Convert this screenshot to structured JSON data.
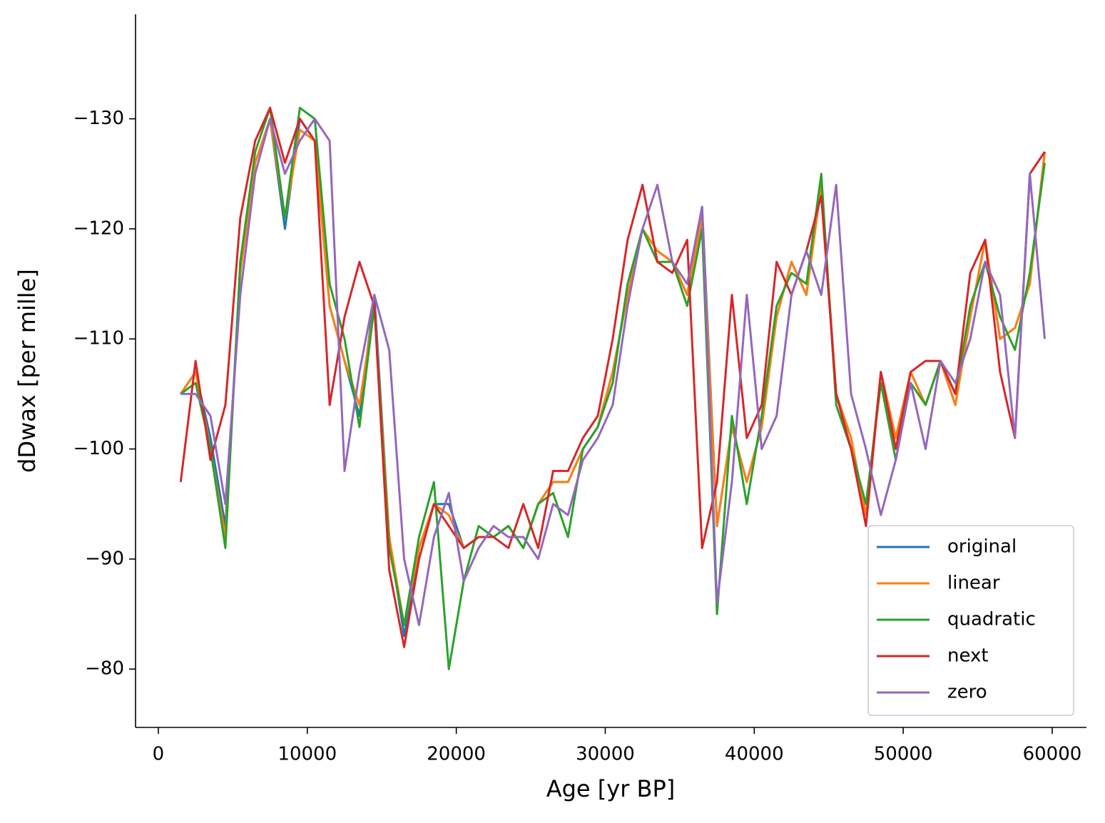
{
  "chart_data": {
    "type": "line",
    "xlabel": "Age [yr BP]",
    "ylabel": "dDwax [per mille]",
    "x": [
      1500,
      2500,
      3500,
      4500,
      5500,
      6500,
      7500,
      8500,
      9500,
      10500,
      11500,
      12500,
      13500,
      14500,
      15500,
      16500,
      17500,
      18500,
      19500,
      20500,
      21500,
      22500,
      23500,
      24500,
      25500,
      26500,
      27500,
      28500,
      29500,
      30500,
      31500,
      32500,
      33500,
      34500,
      35500,
      36500,
      37500,
      38500,
      39500,
      40500,
      41500,
      42500,
      43500,
      44500,
      45500,
      46500,
      47500,
      48500,
      49500,
      50500,
      51500,
      52500,
      53500,
      54500,
      55500,
      56500,
      57500,
      58500,
      59500
    ],
    "series": [
      {
        "name": "original",
        "color": "#1f77b4",
        "values": [
          -105,
          -107,
          -101,
          -93,
          -116,
          -126,
          -130,
          -120,
          -130,
          -128,
          -113,
          -108,
          -103,
          -114,
          -92,
          -83,
          -91,
          -95,
          -95,
          -91,
          -92,
          -92,
          -93,
          -91,
          -95,
          -97,
          -97,
          -100,
          -102,
          -107,
          -114,
          -120,
          -118,
          -117,
          -114,
          -122,
          -93,
          -102,
          -97,
          -102,
          -112,
          -117,
          -114,
          -124,
          -105,
          -101,
          -94,
          -107,
          -101,
          -107,
          -104,
          -108,
          -104,
          -112,
          -119,
          -110,
          -111,
          -115,
          -127
        ]
      },
      {
        "name": "linear",
        "color": "#ff7f0e",
        "values": [
          -105,
          -107,
          -100,
          -92,
          -116,
          -126,
          -130,
          -121,
          -129,
          -128,
          -113,
          -108,
          -104,
          -113,
          -92,
          -84,
          -91,
          -95,
          -94,
          -91,
          -92,
          -92,
          -93,
          -91,
          -95,
          -97,
          -97,
          -100,
          -102,
          -107,
          -114,
          -120,
          -118,
          -117,
          -114,
          -121,
          -93,
          -102,
          -97,
          -102,
          -112,
          -117,
          -114,
          -124,
          -105,
          -101,
          -94,
          -107,
          -101,
          -107,
          -104,
          -108,
          -104,
          -112,
          -119,
          -110,
          -111,
          -115,
          -127
        ]
      },
      {
        "name": "quadratic",
        "color": "#2ca02c",
        "values": [
          -105,
          -106,
          -100,
          -91,
          -117,
          -127,
          -131,
          -121,
          -131,
          -130,
          -115,
          -110,
          -102,
          -113,
          -91,
          -84,
          -92,
          -97,
          -80,
          -88,
          -93,
          -92,
          -93,
          -91,
          -95,
          -96,
          -92,
          -100,
          -102,
          -106,
          -115,
          -120,
          -117,
          -117,
          -113,
          -120,
          -85,
          -103,
          -95,
          -103,
          -113,
          -116,
          -115,
          -125,
          -104,
          -100,
          -95,
          -106,
          -99,
          -106,
          -104,
          -108,
          -105,
          -113,
          -117,
          -112,
          -109,
          -116,
          -126
        ]
      },
      {
        "name": "next",
        "color": "#d62728",
        "values": [
          -97,
          -108,
          -99,
          -104,
          -121,
          -128,
          -131,
          -126,
          -130,
          -128,
          -104,
          -112,
          -117,
          -113,
          -89,
          -82,
          -90,
          -95,
          -93,
          -91,
          -92,
          -92,
          -91,
          -95,
          -91,
          -98,
          -98,
          -101,
          -103,
          -110,
          -119,
          -124,
          -117,
          -116,
          -119,
          -91,
          -97,
          -114,
          -101,
          -104,
          -117,
          -114,
          -118,
          -123,
          -105,
          -100,
          -93,
          -107,
          -100,
          -107,
          -108,
          -108,
          -105,
          -116,
          -119,
          -107,
          -101,
          -125,
          -127
        ]
      },
      {
        "name": "zero",
        "color": "#9467bd",
        "values": [
          -105,
          -105,
          -103,
          -95,
          -114,
          -125,
          -130,
          -125,
          -128,
          -130,
          -128,
          -98,
          -107,
          -114,
          -109,
          -90,
          -84,
          -92,
          -96,
          -88,
          -91,
          -93,
          -92,
          -92,
          -90,
          -95,
          -94,
          -99,
          -101,
          -104,
          -113,
          -120,
          -124,
          -117,
          -115,
          -122,
          -86,
          -97,
          -114,
          -100,
          -103,
          -114,
          -118,
          -114,
          -124,
          -105,
          -100,
          -94,
          -99,
          -106,
          -100,
          -108,
          -106,
          -110,
          -117,
          -114,
          -101,
          -125,
          -110
        ]
      }
    ],
    "xlim": [
      -1530,
      62300
    ],
    "ylim": [
      -74.7,
      -139.5
    ],
    "xticks": [
      0,
      10000,
      20000,
      30000,
      40000,
      50000,
      60000
    ],
    "yticks": [
      {
        "value": -130,
        "label": "−130"
      },
      {
        "value": -120,
        "label": "−120"
      },
      {
        "value": -110,
        "label": "−110"
      },
      {
        "value": -100,
        "label": "−100"
      },
      {
        "value": -90,
        "label": "−90"
      },
      {
        "value": -80,
        "label": "−80"
      }
    ],
    "legend": "lower right"
  }
}
